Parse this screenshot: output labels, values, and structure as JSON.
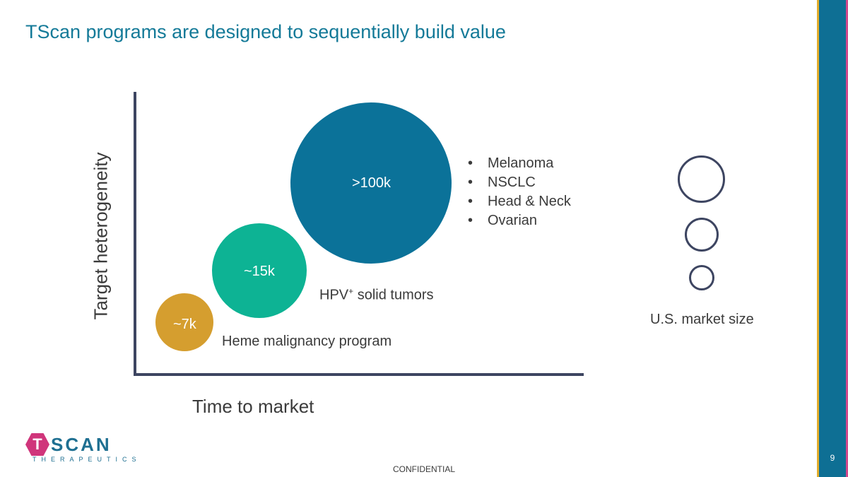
{
  "slide": {
    "title": "TScan programs are designed to sequentially build value",
    "page_number": "9",
    "footer": "CONFIDENTIAL"
  },
  "axes": {
    "ylabel": "Target heterogeneity",
    "xlabel": "Time to market"
  },
  "bubbles": [
    {
      "label": "~7k",
      "annotation": "Heme malignancy program",
      "color": "#D59E2F"
    },
    {
      "label": "~15k",
      "annotation_main": "HPV",
      "annotation_sup": "+",
      "annotation_rest": " solid tumors",
      "color": "#0DB394"
    },
    {
      "label": ">100k",
      "color": "#0B7299"
    }
  ],
  "indications": [
    "Melanoma",
    "NSCLC",
    "Head & Neck",
    "Ovarian"
  ],
  "legend": {
    "label": "U.S. market size"
  },
  "logo": {
    "mark": "T",
    "word": "SCAN",
    "subtitle": "THERAPEUTICS"
  },
  "colors": {
    "title": "#147A98",
    "axis": "#3D4561",
    "brand_blue": "#0E6F94",
    "brand_magenta": "#D0357B"
  }
}
